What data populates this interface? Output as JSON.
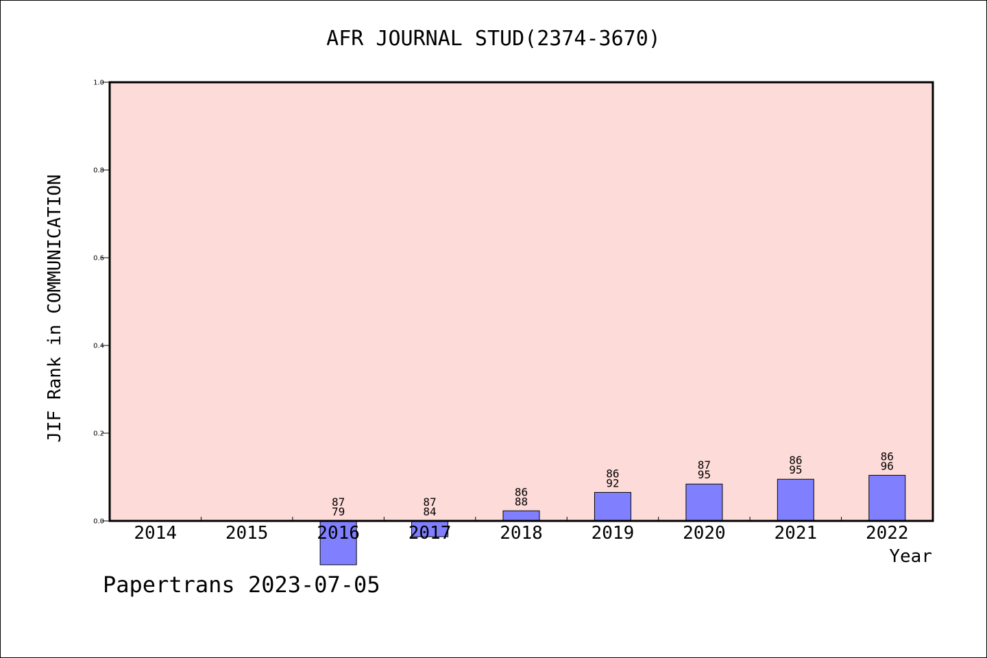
{
  "chart_data": {
    "type": "bar",
    "title": "AFR JOURNAL STUD(2374-3670)",
    "xlabel": "Year",
    "ylabel": "JIF Rank in COMMUNICATION",
    "ylim": [
      0.0,
      1.0
    ],
    "yticks": [
      "0.0",
      "0.2",
      "0.4",
      "0.6",
      "0.8",
      "1.0"
    ],
    "categories": [
      "2014",
      "2015",
      "2016",
      "2017",
      "2018",
      "2019",
      "2020",
      "2021",
      "2022"
    ],
    "values": [
      null,
      null,
      -0.1,
      -0.036,
      0.023,
      0.065,
      0.084,
      0.095,
      0.104
    ],
    "bar_labels_top": [
      "",
      "",
      "87",
      "87",
      "86",
      "86",
      "87",
      "86",
      "86"
    ],
    "bar_labels_bottom": [
      "",
      "",
      "79",
      "84",
      "88",
      "92",
      "95",
      "95",
      "96"
    ],
    "colors": {
      "plot_background": "#fddbd8",
      "bar": "#8080ff",
      "bar_edge": "#000000"
    },
    "grid": false
  },
  "footer": {
    "text": "Papertrans 2023-07-05"
  }
}
